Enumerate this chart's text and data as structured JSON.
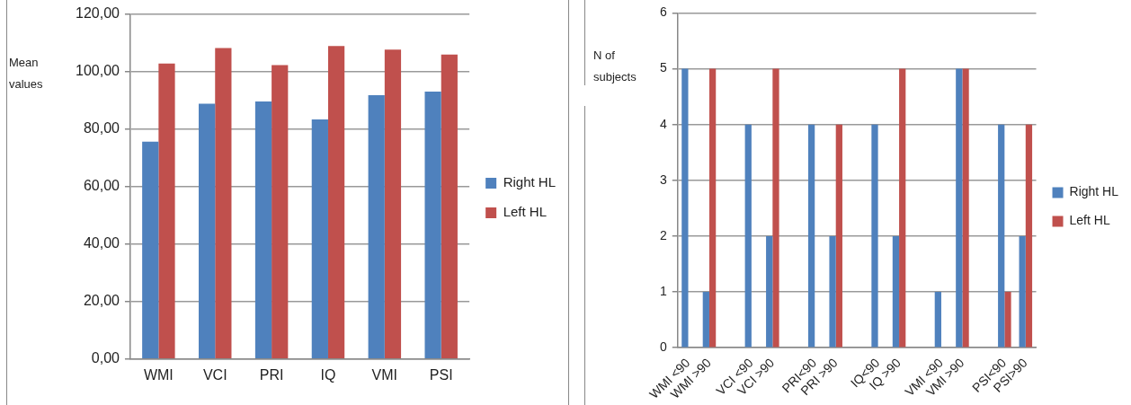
{
  "chart_data": [
    {
      "type": "bar",
      "ylabel": "Mean values",
      "categories": [
        "WMI",
        "VCI",
        "PRI",
        "IQ",
        "VMI",
        "PSI"
      ],
      "series": [
        {
          "name": "Right HL",
          "color": "#4f81bd",
          "values": [
            75.6,
            88.8,
            89.6,
            83.3,
            91.8,
            93.0
          ]
        },
        {
          "name": "Left HL",
          "color": "#c0504d",
          "values": [
            102.8,
            108.2,
            102.2,
            108.9,
            107.6,
            105.9
          ]
        }
      ],
      "ylim": [
        0,
        120
      ],
      "yticks": [
        {
          "value": 0,
          "label": "0,00"
        },
        {
          "value": 20,
          "label": "20,00"
        },
        {
          "value": 40,
          "label": "40,00"
        },
        {
          "value": 60,
          "label": "60,00"
        },
        {
          "value": 80,
          "label": "80,00"
        },
        {
          "value": 100,
          "label": "100,00"
        },
        {
          "value": 120,
          "label": "120,00"
        }
      ],
      "grid": "y",
      "legend": "right"
    },
    {
      "type": "bar",
      "ylabel": "N of subjects",
      "categories": [
        "WMI <90",
        "WMI >90",
        null,
        "VCI <90",
        "VCI >90",
        null,
        "PRI<90",
        "PRI >90",
        null,
        "IQ<90",
        "IQ >90",
        null,
        "VMI <90",
        "VMI >90",
        null,
        "PSI<90",
        "PSI>90"
      ],
      "series": [
        {
          "name": "Right HL",
          "color": "#4f81bd",
          "values": [
            5,
            1,
            null,
            4,
            2,
            null,
            4,
            2,
            null,
            4,
            2,
            null,
            1,
            5,
            null,
            4,
            2
          ]
        },
        {
          "name": "Left HL",
          "color": "#c0504d",
          "values": [
            0,
            5,
            null,
            0,
            5,
            null,
            0,
            4,
            null,
            0,
            5,
            null,
            0,
            5,
            null,
            1,
            4
          ]
        }
      ],
      "ylim": [
        0,
        6
      ],
      "yticks": [
        0,
        1,
        2,
        3,
        4,
        5,
        6
      ],
      "grid": "y",
      "legend": "right"
    }
  ]
}
